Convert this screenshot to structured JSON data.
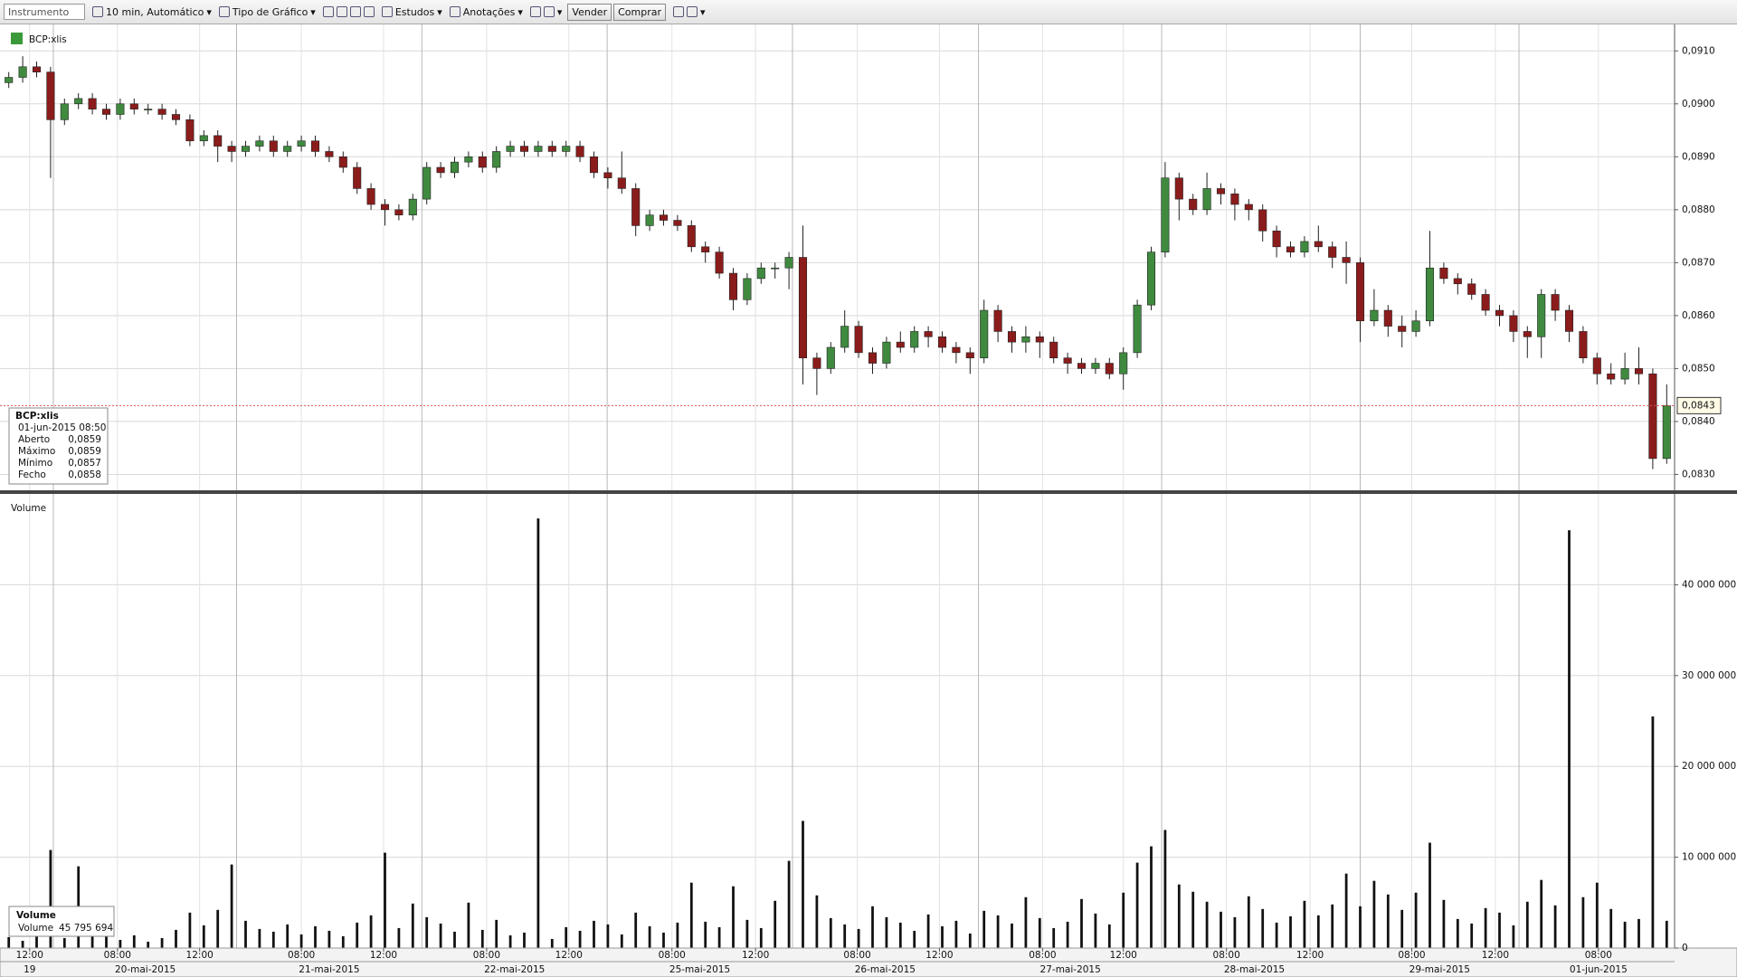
{
  "toolbar": {
    "instrument": "Instrumento",
    "interval": "10 min, Automático",
    "chart_type": "Tipo de Gráfico",
    "studies": "Estudos",
    "annotations": "Anotações",
    "sell": "Vender",
    "buy": "Comprar"
  },
  "info_box": {
    "title": "BCP:xlis",
    "time": "01-jun-2015 08:50",
    "rows": [
      [
        "Aberto",
        "0,0859"
      ],
      [
        "Máximo",
        "0,0859"
      ],
      [
        "Mínimo",
        "0,0857"
      ],
      [
        "Fecho",
        "0,0858"
      ]
    ]
  },
  "volume_box": {
    "title": "Volume",
    "label": "Volume",
    "value": "45 795 694"
  },
  "chart_data": [
    {
      "type": "candlestick",
      "title": "BCP:xlis",
      "up_color": "#3f8a3f",
      "down_color": "#8b1c1c",
      "grid": true,
      "xlim": [
        -0.5,
        119.5
      ],
      "ylim": [
        0.0827,
        0.0915
      ],
      "yticks": [
        {
          "value": 0.083,
          "label": "0,0830"
        },
        {
          "value": 0.084,
          "label": "0,0840"
        },
        {
          "value": 0.085,
          "label": "0,0850"
        },
        {
          "value": 0.086,
          "label": "0,0860"
        },
        {
          "value": 0.087,
          "label": "0,0870"
        },
        {
          "value": 0.088,
          "label": "0,0880"
        },
        {
          "value": 0.089,
          "label": "0,0890"
        },
        {
          "value": 0.09,
          "label": "0,0900"
        },
        {
          "value": 0.091,
          "label": "0,0910"
        }
      ],
      "last_price": {
        "value": 0.0843,
        "label": "0,0843"
      },
      "open": [
        0.0904,
        0.0905,
        0.0907,
        0.0906,
        0.0897,
        0.09,
        0.0901,
        0.0899,
        0.0898,
        0.09,
        0.0899,
        0.0899,
        0.0898,
        0.0897,
        0.0893,
        0.0894,
        0.0892,
        0.0891,
        0.0892,
        0.0893,
        0.0891,
        0.0892,
        0.0893,
        0.0891,
        0.089,
        0.0888,
        0.0884,
        0.0881,
        0.088,
        0.0879,
        0.0882,
        0.0888,
        0.0887,
        0.0889,
        0.089,
        0.0888,
        0.0891,
        0.0892,
        0.0891,
        0.0892,
        0.0891,
        0.0892,
        0.089,
        0.0887,
        0.0886,
        0.0884,
        0.0877,
        0.0879,
        0.0878,
        0.0877,
        0.0873,
        0.0872,
        0.0868,
        0.0863,
        0.0867,
        0.0869,
        0.0869,
        0.0871,
        0.0852,
        0.085,
        0.0854,
        0.0858,
        0.0853,
        0.0851,
        0.0855,
        0.0854,
        0.0857,
        0.0856,
        0.0854,
        0.0853,
        0.0852,
        0.0861,
        0.0857,
        0.0855,
        0.0856,
        0.0855,
        0.0852,
        0.0851,
        0.085,
        0.0851,
        0.0849,
        0.0853,
        0.0862,
        0.0872,
        0.0886,
        0.0882,
        0.088,
        0.0884,
        0.0883,
        0.0881,
        0.088,
        0.0876,
        0.0873,
        0.0872,
        0.0874,
        0.0873,
        0.0871,
        0.087,
        0.0859,
        0.0861,
        0.0858,
        0.0857,
        0.0859,
        0.0869,
        0.0867,
        0.0866,
        0.0864,
        0.0861,
        0.086,
        0.0857,
        0.0856,
        0.0864,
        0.0861,
        0.0857,
        0.0852,
        0.0849,
        0.0848,
        0.085,
        0.0849,
        0.0833
      ],
      "high": [
        0.0906,
        0.0909,
        0.0908,
        0.0907,
        0.0901,
        0.0902,
        0.0902,
        0.09,
        0.0901,
        0.0901,
        0.09,
        0.09,
        0.0899,
        0.0898,
        0.0895,
        0.0895,
        0.0893,
        0.0893,
        0.0894,
        0.0894,
        0.0893,
        0.0894,
        0.0894,
        0.0892,
        0.0891,
        0.0889,
        0.0885,
        0.0882,
        0.0881,
        0.0883,
        0.0889,
        0.0889,
        0.089,
        0.0891,
        0.0891,
        0.0892,
        0.0893,
        0.0893,
        0.0893,
        0.0893,
        0.0893,
        0.0893,
        0.0891,
        0.0888,
        0.0891,
        0.0885,
        0.088,
        0.088,
        0.0879,
        0.0878,
        0.0874,
        0.0873,
        0.0869,
        0.0868,
        0.087,
        0.087,
        0.0872,
        0.0877,
        0.0853,
        0.0855,
        0.0861,
        0.0859,
        0.0854,
        0.0856,
        0.0857,
        0.0858,
        0.0858,
        0.0857,
        0.0855,
        0.0854,
        0.0863,
        0.0862,
        0.0858,
        0.0858,
        0.0857,
        0.0856,
        0.0853,
        0.0852,
        0.0852,
        0.0852,
        0.0854,
        0.0863,
        0.0873,
        0.0889,
        0.0887,
        0.0883,
        0.0887,
        0.0885,
        0.0884,
        0.0882,
        0.0881,
        0.0877,
        0.0874,
        0.0875,
        0.0877,
        0.0874,
        0.0874,
        0.0871,
        0.0865,
        0.0862,
        0.086,
        0.0861,
        0.0876,
        0.087,
        0.0868,
        0.0867,
        0.0865,
        0.0862,
        0.0861,
        0.0858,
        0.0865,
        0.0865,
        0.0862,
        0.0858,
        0.0853,
        0.0851,
        0.0853,
        0.0854,
        0.085,
        0.0847
      ],
      "low": [
        0.0903,
        0.0904,
        0.0905,
        0.0886,
        0.0896,
        0.0899,
        0.0898,
        0.0897,
        0.0897,
        0.0898,
        0.0898,
        0.0897,
        0.0896,
        0.0892,
        0.0892,
        0.0889,
        0.0889,
        0.089,
        0.0891,
        0.089,
        0.089,
        0.0891,
        0.089,
        0.0889,
        0.0887,
        0.0883,
        0.088,
        0.0877,
        0.0878,
        0.0878,
        0.0881,
        0.0886,
        0.0886,
        0.0888,
        0.0887,
        0.0887,
        0.089,
        0.089,
        0.089,
        0.089,
        0.089,
        0.0889,
        0.0886,
        0.0884,
        0.0883,
        0.0875,
        0.0876,
        0.0877,
        0.0876,
        0.0872,
        0.087,
        0.0867,
        0.0861,
        0.0862,
        0.0866,
        0.0867,
        0.0865,
        0.0847,
        0.0845,
        0.0849,
        0.0853,
        0.0852,
        0.0849,
        0.085,
        0.0853,
        0.0853,
        0.0854,
        0.0853,
        0.0851,
        0.0849,
        0.0851,
        0.0855,
        0.0853,
        0.0853,
        0.0852,
        0.0851,
        0.0849,
        0.0849,
        0.0849,
        0.0848,
        0.0846,
        0.0852,
        0.0861,
        0.0871,
        0.0878,
        0.0879,
        0.0879,
        0.0881,
        0.0878,
        0.0878,
        0.0874,
        0.0871,
        0.0871,
        0.0871,
        0.0872,
        0.0869,
        0.0866,
        0.0855,
        0.0858,
        0.0856,
        0.0854,
        0.0856,
        0.0858,
        0.0866,
        0.0864,
        0.0863,
        0.086,
        0.0858,
        0.0855,
        0.0852,
        0.0852,
        0.0859,
        0.0855,
        0.0851,
        0.0847,
        0.0847,
        0.0847,
        0.0847,
        0.0831,
        0.0832
      ],
      "close": [
        0.0905,
        0.0907,
        0.0906,
        0.0897,
        0.09,
        0.0901,
        0.0899,
        0.0898,
        0.09,
        0.0899,
        0.0899,
        0.0898,
        0.0897,
        0.0893,
        0.0894,
        0.0892,
        0.0891,
        0.0892,
        0.0893,
        0.0891,
        0.0892,
        0.0893,
        0.0891,
        0.089,
        0.0888,
        0.0884,
        0.0881,
        0.088,
        0.0879,
        0.0882,
        0.0888,
        0.0887,
        0.0889,
        0.089,
        0.0888,
        0.0891,
        0.0892,
        0.0891,
        0.0892,
        0.0891,
        0.0892,
        0.089,
        0.0887,
        0.0886,
        0.0884,
        0.0877,
        0.0879,
        0.0878,
        0.0877,
        0.0873,
        0.0872,
        0.0868,
        0.0863,
        0.0867,
        0.0869,
        0.0869,
        0.0871,
        0.0852,
        0.085,
        0.0854,
        0.0858,
        0.0853,
        0.0851,
        0.0855,
        0.0854,
        0.0857,
        0.0856,
        0.0854,
        0.0853,
        0.0852,
        0.0861,
        0.0857,
        0.0855,
        0.0856,
        0.0855,
        0.0852,
        0.0851,
        0.085,
        0.0851,
        0.0849,
        0.0853,
        0.0862,
        0.0872,
        0.0886,
        0.0882,
        0.088,
        0.0884,
        0.0883,
        0.0881,
        0.088,
        0.0876,
        0.0873,
        0.0872,
        0.0874,
        0.0873,
        0.0871,
        0.087,
        0.0859,
        0.0861,
        0.0858,
        0.0857,
        0.0859,
        0.0869,
        0.0867,
        0.0866,
        0.0864,
        0.0861,
        0.086,
        0.0857,
        0.0856,
        0.0864,
        0.0861,
        0.0857,
        0.0852,
        0.0849,
        0.0848,
        0.085,
        0.0849,
        0.0833,
        0.0843
      ]
    },
    {
      "type": "bar",
      "title": "Volume",
      "color": "#111111",
      "grid": true,
      "xlim": [
        -0.5,
        119.5
      ],
      "ylim": [
        0,
        50000000
      ],
      "yticks": [
        {
          "value": 0,
          "label": "0"
        },
        {
          "value": 10000000,
          "label": "10 000 000"
        },
        {
          "value": 20000000,
          "label": "20 000 000"
        },
        {
          "value": 30000000,
          "label": "30 000 000"
        },
        {
          "value": 40000000,
          "label": "40 000 000"
        }
      ],
      "xticks": [
        {
          "value": 1.5,
          "label": "12:00"
        },
        {
          "value": 7.8,
          "label": "08:00"
        },
        {
          "value": 13.7,
          "label": "12:00"
        },
        {
          "value": 21.0,
          "label": "08:00"
        },
        {
          "value": 26.9,
          "label": "12:00"
        },
        {
          "value": 34.3,
          "label": "08:00"
        },
        {
          "value": 40.2,
          "label": "12:00"
        },
        {
          "value": 47.6,
          "label": "08:00"
        },
        {
          "value": 53.6,
          "label": "12:00"
        },
        {
          "value": 60.9,
          "label": "08:00"
        },
        {
          "value": 66.8,
          "label": "12:00"
        },
        {
          "value": 74.2,
          "label": "08:00"
        },
        {
          "value": 80.0,
          "label": "12:00"
        },
        {
          "value": 87.4,
          "label": "08:00"
        },
        {
          "value": 93.4,
          "label": "12:00"
        },
        {
          "value": 100.7,
          "label": "08:00"
        },
        {
          "value": 106.7,
          "label": "12:00"
        },
        {
          "value": 114.1,
          "label": "08:00"
        }
      ],
      "date_ticks": [
        {
          "value": 1.5,
          "label": "19"
        },
        {
          "value": 9.8,
          "label": "20-mai-2015"
        },
        {
          "value": 23.0,
          "label": "21-mai-2015"
        },
        {
          "value": 36.3,
          "label": "22-mai-2015"
        },
        {
          "value": 49.6,
          "label": "25-mai-2015"
        },
        {
          "value": 62.9,
          "label": "26-mai-2015"
        },
        {
          "value": 76.2,
          "label": "27-mai-2015"
        },
        {
          "value": 89.4,
          "label": "28-mai-2015"
        },
        {
          "value": 102.7,
          "label": "29-mai-2015"
        },
        {
          "value": 114.1,
          "label": "01-jun-2015"
        }
      ],
      "values": [
        1200000,
        800000,
        1500000,
        10800000,
        1100000,
        9000000,
        1600000,
        1300000,
        900000,
        1400000,
        700000,
        1100000,
        2000000,
        3900000,
        2500000,
        4200000,
        9200000,
        3000000,
        2100000,
        1800000,
        2600000,
        1500000,
        2400000,
        1900000,
        1300000,
        2800000,
        3600000,
        10500000,
        2200000,
        4900000,
        3400000,
        2700000,
        1800000,
        5000000,
        2000000,
        3100000,
        1400000,
        1700000,
        47300000,
        1000000,
        2300000,
        1900000,
        3000000,
        2600000,
        1500000,
        3900000,
        2400000,
        1700000,
        2800000,
        7200000,
        2900000,
        2300000,
        6800000,
        3100000,
        2200000,
        5200000,
        9600000,
        14000000,
        5800000,
        3300000,
        2600000,
        2100000,
        4600000,
        3400000,
        2800000,
        1900000,
        3700000,
        2400000,
        3000000,
        1600000,
        4100000,
        3600000,
        2700000,
        5600000,
        3300000,
        2200000,
        2900000,
        5400000,
        3800000,
        2600000,
        6100000,
        9400000,
        11200000,
        13000000,
        7000000,
        6200000,
        5100000,
        4000000,
        3400000,
        5700000,
        4300000,
        2800000,
        3500000,
        5200000,
        3600000,
        4800000,
        8200000,
        4600000,
        7400000,
        5900000,
        4200000,
        6100000,
        11600000,
        5300000,
        3200000,
        2700000,
        4400000,
        3900000,
        2500000,
        5100000,
        7500000,
        4700000,
        46000000,
        5600000,
        7200000,
        4300000,
        2900000,
        3200000,
        25500000,
        3000000
      ]
    }
  ]
}
